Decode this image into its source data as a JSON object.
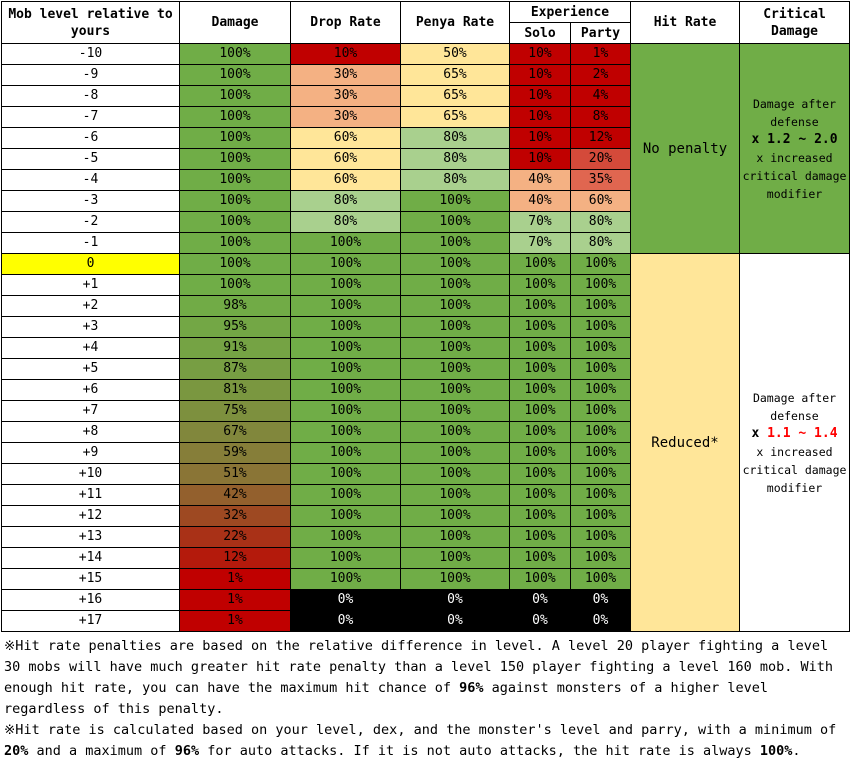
{
  "headers": {
    "mob_level": "Mob level relative to yours",
    "damage": "Damage",
    "drop_rate": "Drop Rate",
    "penya_rate": "Penya Rate",
    "experience": "Experience",
    "solo": "Solo",
    "party": "Party",
    "hit_rate": "Hit Rate",
    "critical_damage": "Critical Damage"
  },
  "rows": [
    {
      "level": "-10",
      "damage": "100%",
      "drop": "10%",
      "penya": "50%",
      "solo": "10%",
      "party": "1%"
    },
    {
      "level": "-9",
      "damage": "100%",
      "drop": "30%",
      "penya": "65%",
      "solo": "10%",
      "party": "2%"
    },
    {
      "level": "-8",
      "damage": "100%",
      "drop": "30%",
      "penya": "65%",
      "solo": "10%",
      "party": "4%"
    },
    {
      "level": "-7",
      "damage": "100%",
      "drop": "30%",
      "penya": "65%",
      "solo": "10%",
      "party": "8%"
    },
    {
      "level": "-6",
      "damage": "100%",
      "drop": "60%",
      "penya": "80%",
      "solo": "10%",
      "party": "12%"
    },
    {
      "level": "-5",
      "damage": "100%",
      "drop": "60%",
      "penya": "80%",
      "solo": "10%",
      "party": "20%"
    },
    {
      "level": "-4",
      "damage": "100%",
      "drop": "60%",
      "penya": "80%",
      "solo": "40%",
      "party": "35%"
    },
    {
      "level": "-3",
      "damage": "100%",
      "drop": "80%",
      "penya": "100%",
      "solo": "40%",
      "party": "60%"
    },
    {
      "level": "-2",
      "damage": "100%",
      "drop": "80%",
      "penya": "100%",
      "solo": "70%",
      "party": "80%"
    },
    {
      "level": "-1",
      "damage": "100%",
      "drop": "100%",
      "penya": "100%",
      "solo": "70%",
      "party": "80%"
    },
    {
      "level": "0",
      "damage": "100%",
      "drop": "100%",
      "penya": "100%",
      "solo": "100%",
      "party": "100%"
    },
    {
      "level": "+1",
      "damage": "100%",
      "drop": "100%",
      "penya": "100%",
      "solo": "100%",
      "party": "100%"
    },
    {
      "level": "+2",
      "damage": "98%",
      "drop": "100%",
      "penya": "100%",
      "solo": "100%",
      "party": "100%"
    },
    {
      "level": "+3",
      "damage": "95%",
      "drop": "100%",
      "penya": "100%",
      "solo": "100%",
      "party": "100%"
    },
    {
      "level": "+4",
      "damage": "91%",
      "drop": "100%",
      "penya": "100%",
      "solo": "100%",
      "party": "100%"
    },
    {
      "level": "+5",
      "damage": "87%",
      "drop": "100%",
      "penya": "100%",
      "solo": "100%",
      "party": "100%"
    },
    {
      "level": "+6",
      "damage": "81%",
      "drop": "100%",
      "penya": "100%",
      "solo": "100%",
      "party": "100%"
    },
    {
      "level": "+7",
      "damage": "75%",
      "drop": "100%",
      "penya": "100%",
      "solo": "100%",
      "party": "100%"
    },
    {
      "level": "+8",
      "damage": "67%",
      "drop": "100%",
      "penya": "100%",
      "solo": "100%",
      "party": "100%"
    },
    {
      "level": "+9",
      "damage": "59%",
      "drop": "100%",
      "penya": "100%",
      "solo": "100%",
      "party": "100%"
    },
    {
      "level": "+10",
      "damage": "51%",
      "drop": "100%",
      "penya": "100%",
      "solo": "100%",
      "party": "100%"
    },
    {
      "level": "+11",
      "damage": "42%",
      "drop": "100%",
      "penya": "100%",
      "solo": "100%",
      "party": "100%"
    },
    {
      "level": "+12",
      "damage": "32%",
      "drop": "100%",
      "penya": "100%",
      "solo": "100%",
      "party": "100%"
    },
    {
      "level": "+13",
      "damage": "22%",
      "drop": "100%",
      "penya": "100%",
      "solo": "100%",
      "party": "100%"
    },
    {
      "level": "+14",
      "damage": "12%",
      "drop": "100%",
      "penya": "100%",
      "solo": "100%",
      "party": "100%"
    },
    {
      "level": "+15",
      "damage": "1%",
      "drop": "100%",
      "penya": "100%",
      "solo": "100%",
      "party": "100%"
    },
    {
      "level": "+16",
      "damage": "1%",
      "drop": "0%",
      "penya": "0%",
      "solo": "0%",
      "party": "0%"
    },
    {
      "level": "+17",
      "damage": "1%",
      "drop": "0%",
      "penya": "0%",
      "solo": "0%",
      "party": "0%"
    }
  ],
  "hit_rate": {
    "lower": "No penalty",
    "higher": "Reduced*"
  },
  "critical": {
    "lower": {
      "line1": "Damage after",
      "line2": "defense",
      "mult": "x 1.2 ~ 2.0",
      "line3": "x increased",
      "line4": "critical damage",
      "line5": "modifier"
    },
    "higher": {
      "line1": "Damage after",
      "line2": "defense",
      "mult_prefix": "x ",
      "mult_value": "1.1 ~ 1.4",
      "line3": "x increased",
      "line4": "critical damage",
      "line5": "modifier"
    }
  },
  "notes": {
    "p1_a": "※Hit rate penalties are based on the relative difference in level. A level 20 player fighting a level 30 mobs will have much greater hit rate penalty than a level 150 player fighting a level 160 mob. With enough hit rate, you can have the maximum hit chance of ",
    "p1_b": "96%",
    "p1_c": " against monsters of a higher level regardless of this penalty.",
    "p2_a": "※Hit rate is calculated based on your level, dex, and the monster's level and parry, with a minimum of ",
    "p2_b": "20%",
    "p2_c": " and a maximum of ",
    "p2_d": "96%",
    "p2_e": " for auto attacks. If it is not auto attacks, the hit rate is always ",
    "p2_f": "100%",
    "p2_g": "."
  },
  "colors": {
    "green": "#70ad47",
    "light_green": "#a9d08e",
    "yellow": "#ffe699",
    "salmon": "#f4b183",
    "dark_red": "#c00000",
    "current_level": "#ffff00",
    "red_text": "#ff0000"
  }
}
